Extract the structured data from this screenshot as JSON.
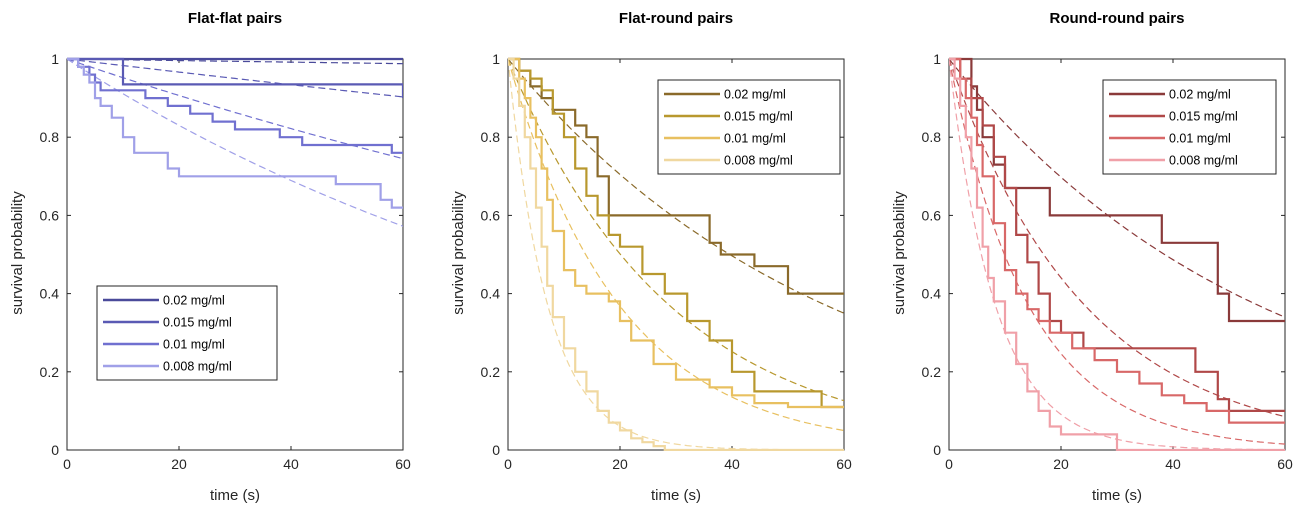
{
  "chart_data": [
    {
      "type": "line",
      "title": "Flat-flat pairs",
      "xlabel": "time (s)",
      "ylabel": "survival probability",
      "xlim": [
        0,
        60
      ],
      "ylim": [
        0,
        1
      ],
      "xticks": [
        "0",
        "20",
        "40",
        "60"
      ],
      "yticks": [
        "0",
        "0.2",
        "0.4",
        "0.6",
        "0.8",
        "1"
      ],
      "legend_position": "lower-left",
      "series": [
        {
          "name": "0.02 mg/ml",
          "color": "#4a4a9a",
          "x": [
            0,
            60
          ],
          "y": [
            1,
            1
          ],
          "fit": {
            "rate": 0.0002
          }
        },
        {
          "name": "0.015 mg/ml",
          "color": "#5a5ab4",
          "x": [
            0,
            9,
            10,
            60
          ],
          "y": [
            1,
            1,
            0.935,
            0.9
          ],
          "fit": {
            "rate": 0.0017
          }
        },
        {
          "name": "0.01 mg/ml",
          "color": "#7070d0",
          "x": [
            0,
            2,
            4,
            5,
            6,
            10,
            14,
            18,
            22,
            26,
            30,
            34,
            38,
            42,
            46,
            50,
            54,
            58,
            60
          ],
          "y": [
            1,
            0.98,
            0.96,
            0.94,
            0.92,
            0.92,
            0.9,
            0.88,
            0.86,
            0.84,
            0.82,
            0.82,
            0.8,
            0.78,
            0.78,
            0.78,
            0.78,
            0.76,
            0.76
          ],
          "fit": {
            "rate": 0.0049
          }
        },
        {
          "name": "0.008 mg/ml",
          "color": "#a0a0e8",
          "x": [
            0,
            2,
            3,
            4,
            5,
            6,
            8,
            10,
            12,
            16,
            18,
            20,
            24,
            28,
            32,
            40,
            48,
            56,
            58,
            60
          ],
          "y": [
            1,
            0.98,
            0.96,
            0.94,
            0.9,
            0.88,
            0.85,
            0.8,
            0.76,
            0.76,
            0.72,
            0.7,
            0.7,
            0.7,
            0.7,
            0.7,
            0.68,
            0.64,
            0.62,
            0.62
          ],
          "fit": {
            "rate": 0.0093
          }
        }
      ]
    },
    {
      "type": "line",
      "title": "Flat-round pairs",
      "xlabel": "time (s)",
      "ylabel": "survival probability",
      "xlim": [
        0,
        60
      ],
      "ylim": [
        0,
        1
      ],
      "xticks": [
        "0",
        "20",
        "40",
        "60"
      ],
      "yticks": [
        "0",
        "0.2",
        "0.4",
        "0.6",
        "0.8",
        "1"
      ],
      "legend_position": "top-right",
      "series": [
        {
          "name": "0.02 mg/ml",
          "color": "#8a6a2a",
          "x": [
            0,
            2,
            4,
            6,
            8,
            10,
            12,
            14,
            16,
            18,
            20,
            26,
            30,
            36,
            38,
            44,
            48,
            50,
            54,
            60
          ],
          "y": [
            1,
            0.97,
            0.93,
            0.9,
            0.87,
            0.87,
            0.83,
            0.8,
            0.7,
            0.6,
            0.6,
            0.6,
            0.6,
            0.53,
            0.5,
            0.47,
            0.47,
            0.4,
            0.4,
            0.4
          ],
          "fit": {
            "rate": 0.0175
          }
        },
        {
          "name": "0.015 mg/ml",
          "color": "#b8982e",
          "x": [
            0,
            2,
            4,
            6,
            8,
            10,
            12,
            14,
            16,
            18,
            20,
            24,
            28,
            32,
            36,
            40,
            44,
            50,
            54,
            56,
            60
          ],
          "y": [
            1,
            0.97,
            0.95,
            0.92,
            0.86,
            0.8,
            0.72,
            0.65,
            0.6,
            0.55,
            0.52,
            0.45,
            0.4,
            0.33,
            0.28,
            0.2,
            0.15,
            0.15,
            0.15,
            0.11,
            0.11
          ],
          "fit": {
            "rate": 0.0345
          }
        },
        {
          "name": "0.01 mg/ml",
          "color": "#e8c060",
          "x": [
            0,
            2,
            3,
            4,
            5,
            6,
            7,
            8,
            10,
            12,
            14,
            18,
            20,
            22,
            26,
            30,
            36,
            40,
            44,
            50,
            60
          ],
          "y": [
            1,
            0.95,
            0.9,
            0.85,
            0.8,
            0.72,
            0.64,
            0.56,
            0.46,
            0.42,
            0.4,
            0.38,
            0.33,
            0.28,
            0.22,
            0.18,
            0.16,
            0.14,
            0.12,
            0.11,
            0.11
          ],
          "fit": {
            "rate": 0.05
          }
        },
        {
          "name": "0.008 mg/ml",
          "color": "#f0d8a0",
          "x": [
            0,
            1,
            2,
            3,
            4,
            5,
            6,
            7,
            8,
            10,
            12,
            14,
            16,
            18,
            20,
            22,
            24,
            26,
            27,
            28,
            30,
            40,
            50,
            60
          ],
          "y": [
            1,
            0.95,
            0.88,
            0.8,
            0.72,
            0.62,
            0.52,
            0.42,
            0.34,
            0.26,
            0.2,
            0.15,
            0.1,
            0.07,
            0.05,
            0.03,
            0.02,
            0.01,
            0.01,
            0,
            0,
            0,
            0,
            0
          ],
          "fit": {
            "rate": 0.14
          }
        }
      ]
    },
    {
      "type": "line",
      "title": "Round-round pairs",
      "xlabel": "time (s)",
      "ylabel": "survival probability",
      "xlim": [
        0,
        60
      ],
      "ylim": [
        0,
        1
      ],
      "xticks": [
        "0",
        "20",
        "40",
        "60"
      ],
      "yticks": [
        "0",
        "0.2",
        "0.4",
        "0.6",
        "0.8",
        "1"
      ],
      "legend_position": "top-right",
      "series": [
        {
          "name": "0.02 mg/ml",
          "color": "#8a3a3a",
          "x": [
            0,
            2,
            4,
            5,
            6,
            8,
            10,
            12,
            14,
            16,
            18,
            20,
            22,
            30,
            36,
            38,
            40,
            46,
            48,
            50,
            52,
            58,
            60
          ],
          "y": [
            1,
            1,
            0.93,
            0.87,
            0.8,
            0.73,
            0.67,
            0.67,
            0.67,
            0.67,
            0.6,
            0.6,
            0.6,
            0.6,
            0.6,
            0.53,
            0.53,
            0.53,
            0.4,
            0.33,
            0.33,
            0.33,
            0.33
          ],
          "fit": {
            "rate": 0.018
          }
        },
        {
          "name": "0.015 mg/ml",
          "color": "#b04848",
          "x": [
            0,
            2,
            4,
            6,
            8,
            10,
            12,
            14,
            16,
            18,
            20,
            24,
            28,
            32,
            36,
            40,
            44,
            48,
            50,
            52,
            56,
            60
          ],
          "y": [
            1,
            0.95,
            0.9,
            0.83,
            0.75,
            0.67,
            0.55,
            0.48,
            0.4,
            0.33,
            0.3,
            0.26,
            0.26,
            0.26,
            0.26,
            0.26,
            0.2,
            0.13,
            0.1,
            0.1,
            0.1,
            0.1
          ],
          "fit": {
            "rate": 0.041
          }
        },
        {
          "name": "0.01 mg/ml",
          "color": "#d86868",
          "x": [
            0,
            2,
            3,
            4,
            5,
            6,
            8,
            10,
            12,
            14,
            16,
            18,
            22,
            26,
            30,
            34,
            38,
            42,
            46,
            50,
            54,
            60
          ],
          "y": [
            1,
            0.95,
            0.9,
            0.85,
            0.78,
            0.7,
            0.58,
            0.46,
            0.4,
            0.36,
            0.33,
            0.3,
            0.26,
            0.23,
            0.2,
            0.17,
            0.14,
            0.12,
            0.1,
            0.07,
            0.07,
            0.07
          ],
          "fit": {
            "rate": 0.07
          }
        },
        {
          "name": "0.008 mg/ml",
          "color": "#f0a0a8",
          "x": [
            0,
            1,
            2,
            3,
            4,
            5,
            6,
            7,
            8,
            10,
            12,
            14,
            16,
            18,
            20,
            22,
            24,
            26,
            28,
            30,
            40,
            50,
            60
          ],
          "y": [
            1,
            0.95,
            0.88,
            0.8,
            0.72,
            0.62,
            0.52,
            0.44,
            0.38,
            0.3,
            0.22,
            0.15,
            0.1,
            0.06,
            0.04,
            0.04,
            0.04,
            0.04,
            0.04,
            0,
            0,
            0,
            0
          ],
          "fit": {
            "rate": 0.12
          }
        }
      ]
    }
  ]
}
